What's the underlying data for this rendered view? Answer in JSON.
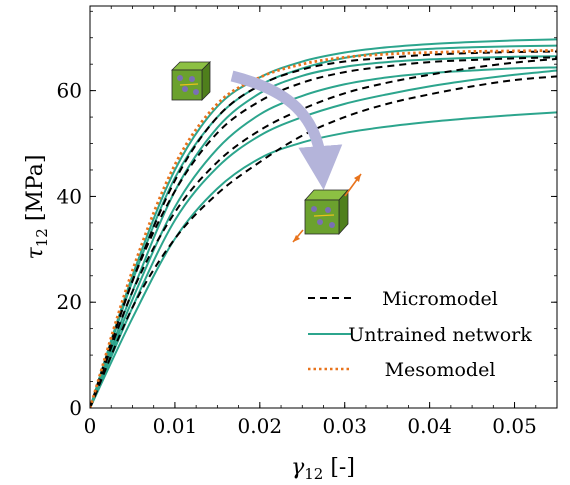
{
  "chart_data": {
    "type": "line",
    "xlabel": "γ12 [-]",
    "ylabel": "τ12 [MPa]",
    "xlim": [
      0,
      0.055
    ],
    "ylim": [
      0,
      76
    ],
    "xticks": [
      0,
      0.01,
      0.02,
      0.03,
      0.04,
      0.05
    ],
    "xtick_labels": [
      "0",
      "0.01",
      "0.02",
      "0.03",
      "0.04",
      "0.05"
    ],
    "yticks": [
      0,
      20,
      40,
      60
    ],
    "ytick_labels": [
      "0",
      "20",
      "40",
      "60"
    ],
    "grid": false,
    "legend_position": "bottom-right",
    "legend": [
      {
        "label": "Micromodel",
        "style": "dashed",
        "color": "#000000"
      },
      {
        "label": "Untrained network",
        "style": "solid",
        "color": "#2ca58d"
      },
      {
        "label": "Mesomodel",
        "style": "dotted",
        "color": "#e8731c"
      }
    ],
    "series": [
      {
        "group": "Micromodel",
        "x": [
          0,
          0.005,
          0.01,
          0.015,
          0.02,
          0.025,
          0.03,
          0.035,
          0.04,
          0.045,
          0.05,
          0.055
        ],
        "y": [
          0,
          24,
          43,
          55,
          61,
          64,
          65.5,
          66.2,
          66.8,
          67.1,
          67.3,
          67.4
        ]
      },
      {
        "group": "Micromodel",
        "x": [
          0,
          0.005,
          0.01,
          0.015,
          0.02,
          0.025,
          0.03,
          0.035,
          0.04,
          0.045,
          0.05,
          0.055
        ],
        "y": [
          0,
          24,
          41,
          52,
          58,
          61.5,
          63.5,
          64.6,
          65.4,
          65.8,
          66.1,
          66.3
        ]
      },
      {
        "group": "Micromodel",
        "x": [
          0,
          0.005,
          0.01,
          0.015,
          0.02,
          0.025,
          0.03,
          0.035,
          0.04,
          0.045,
          0.05,
          0.055
        ],
        "y": [
          0,
          22,
          37,
          46.5,
          52.5,
          56.5,
          59.5,
          61.5,
          63,
          64.3,
          65.3,
          66
        ]
      },
      {
        "group": "Micromodel",
        "x": [
          0,
          0.005,
          0.01,
          0.015,
          0.02,
          0.025,
          0.03,
          0.035,
          0.04,
          0.045,
          0.05,
          0.055
        ],
        "y": [
          0,
          19,
          32,
          40.5,
          46.5,
          51.5,
          55,
          57.5,
          59.3,
          60.8,
          62,
          62.7
        ]
      },
      {
        "group": "Untrained network",
        "x": [
          0,
          0.005,
          0.01,
          0.015,
          0.02,
          0.025,
          0.03,
          0.035,
          0.04,
          0.045,
          0.05,
          0.055
        ],
        "y": [
          0,
          25,
          45,
          57,
          62.5,
          65.5,
          67.2,
          68.2,
          68.8,
          69.2,
          69.5,
          69.7
        ]
      },
      {
        "group": "Untrained network",
        "x": [
          0,
          0.005,
          0.01,
          0.015,
          0.02,
          0.025,
          0.03,
          0.035,
          0.04,
          0.045,
          0.05,
          0.055
        ],
        "y": [
          0,
          24,
          43.5,
          55,
          61,
          64.2,
          66.2,
          67.3,
          67.9,
          68.2,
          68.4,
          68.5
        ]
      },
      {
        "group": "Untrained network",
        "x": [
          0,
          0.005,
          0.01,
          0.015,
          0.02,
          0.025,
          0.03,
          0.035,
          0.04,
          0.045,
          0.05,
          0.055
        ],
        "y": [
          0,
          22,
          41,
          53,
          59.5,
          62.8,
          64.5,
          65.4,
          65.9,
          66.2,
          66.4,
          66.5
        ]
      },
      {
        "group": "Untrained network",
        "x": [
          0,
          0.005,
          0.01,
          0.015,
          0.02,
          0.025,
          0.03,
          0.035,
          0.04,
          0.045,
          0.05,
          0.055
        ],
        "y": [
          0,
          20.5,
          38,
          49,
          55.5,
          59,
          61.2,
          62.5,
          63.3,
          63.8,
          64.2,
          64.4
        ]
      },
      {
        "group": "Untrained network",
        "x": [
          0,
          0.005,
          0.01,
          0.015,
          0.02,
          0.025,
          0.03,
          0.035,
          0.04,
          0.045,
          0.05,
          0.055
        ],
        "y": [
          0,
          19,
          35.5,
          45.5,
          51.5,
          55,
          57.5,
          59.3,
          60.8,
          62,
          63,
          63.8
        ]
      },
      {
        "group": "Untrained network",
        "x": [
          0,
          0.005,
          0.01,
          0.015,
          0.02,
          0.025,
          0.03,
          0.035,
          0.04,
          0.045,
          0.05,
          0.055
        ],
        "y": [
          0,
          17,
          32,
          41.5,
          47.2,
          50.2,
          52,
          53.2,
          54.1,
          54.8,
          55.4,
          55.9
        ]
      },
      {
        "group": "Mesomodel",
        "x": [
          0,
          0.005,
          0.01,
          0.015,
          0.02,
          0.025,
          0.03,
          0.035,
          0.04,
          0.045,
          0.05,
          0.055
        ],
        "y": [
          0,
          26,
          46,
          57.5,
          62.5,
          65,
          66.3,
          66.9,
          67.2,
          67.4,
          67.5,
          67.6
        ]
      }
    ]
  },
  "colors": {
    "micromodel": "#000000",
    "network": "#2ca58d",
    "mesomodel": "#e8731c",
    "arrow": "#b4b4da",
    "cube_front": "#6ba12e",
    "cube_top": "#8cc043",
    "cube_side": "#4f7f1c",
    "fiber": "#7a6fb5"
  },
  "insets": [
    {
      "name": "cube-inset-unloaded",
      "icon": "composite-cube-icon"
    },
    {
      "name": "cube-inset-sheared",
      "icon": "composite-cube-sheared-icon"
    }
  ]
}
